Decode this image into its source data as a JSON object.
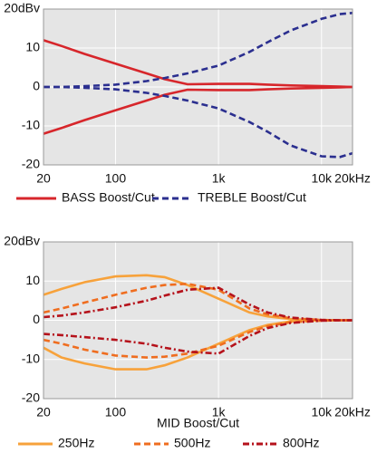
{
  "chart_data": [
    {
      "type": "line",
      "xscale": "log",
      "grid": true,
      "x": [
        20,
        30,
        50,
        100,
        200,
        300,
        500,
        1000,
        2000,
        3000,
        5000,
        10000,
        15000,
        20000
      ],
      "xlim": [
        20,
        20000
      ],
      "ylim": [
        -20,
        20
      ],
      "xticks": [
        20,
        100,
        {
          "value": 1000,
          "label": "1k"
        },
        {
          "value": 10000,
          "label": "10k"
        },
        {
          "value": 20000,
          "label": "20kHz"
        }
      ],
      "yticks": [
        -20,
        -10,
        0,
        10,
        {
          "value": 20,
          "label": "20dBv"
        }
      ],
      "series": [
        {
          "name": "BASS Boost/Cut",
          "color": "#d7262b",
          "style": "solid",
          "boost": [
            12,
            10.5,
            8.5,
            6,
            3.5,
            2,
            0.7,
            0.8,
            0.8,
            0.6,
            0.4,
            0.2,
            0.1,
            0
          ],
          "cut": [
            -12,
            -10.5,
            -8.5,
            -6,
            -3.5,
            -2,
            -0.7,
            -0.8,
            -0.8,
            -0.6,
            -0.4,
            -0.2,
            -0.1,
            0
          ]
        },
        {
          "name": "TREBLE Boost/Cut",
          "color": "#2b2f8f",
          "style": "dashed",
          "boost": [
            0,
            0,
            0.2,
            0.6,
            1.5,
            2.3,
            3.5,
            5.5,
            9,
            11.5,
            14.5,
            17.5,
            18.7,
            19
          ],
          "cut": [
            0,
            0,
            -0.2,
            -0.6,
            -1.5,
            -2.3,
            -3.5,
            -5.5,
            -9,
            -11.5,
            -15,
            -17.8,
            -18,
            -17
          ]
        }
      ]
    },
    {
      "type": "line",
      "xscale": "log",
      "grid": true,
      "xlabel": "MID Boost/Cut",
      "x": [
        20,
        30,
        50,
        100,
        200,
        300,
        500,
        1000,
        2000,
        3000,
        5000,
        10000,
        15000,
        20000
      ],
      "xlim": [
        20,
        20000
      ],
      "ylim": [
        -20,
        20
      ],
      "xticks": [
        20,
        100,
        {
          "value": 1000,
          "label": "1k"
        },
        {
          "value": 10000,
          "label": "10k"
        },
        {
          "value": 20000,
          "label": "20kHz"
        }
      ],
      "yticks": [
        -20,
        -10,
        0,
        10,
        {
          "value": 20,
          "label": "20dBv"
        }
      ],
      "series": [
        {
          "name": "250Hz",
          "color": "#f7a23b",
          "style": "solid",
          "boost": [
            6.5,
            8,
            9.7,
            11.2,
            11.5,
            11,
            9,
            5.5,
            2,
            1,
            0.3,
            0,
            0,
            0
          ],
          "cut": [
            -7,
            -9.5,
            -11,
            -12.5,
            -12.5,
            -11.5,
            -9.5,
            -6,
            -2.5,
            -1.2,
            -0.3,
            0,
            0,
            0
          ]
        },
        {
          "name": "500Hz",
          "color": "#ef6d1f",
          "style": "dashed",
          "boost": [
            2,
            3,
            4.5,
            6.5,
            8.3,
            9,
            9.3,
            7.8,
            3,
            1.5,
            0.5,
            0.1,
            0,
            0
          ],
          "cut": [
            -5,
            -6,
            -7.5,
            -9,
            -9.5,
            -9.3,
            -8.5,
            -6.5,
            -3,
            -1.5,
            -0.5,
            -0.1,
            0,
            0
          ]
        },
        {
          "name": "800Hz",
          "color": "#b5121b",
          "style": "dashdot",
          "boost": [
            0.8,
            1.2,
            2,
            3.3,
            5,
            6.3,
            7.8,
            8.3,
            4,
            2,
            0.7,
            0.1,
            0,
            0
          ],
          "cut": [
            -3.5,
            -3.8,
            -4.3,
            -5,
            -6,
            -7,
            -8,
            -8.5,
            -4,
            -2,
            -0.7,
            -0.1,
            0,
            0
          ]
        }
      ]
    }
  ]
}
